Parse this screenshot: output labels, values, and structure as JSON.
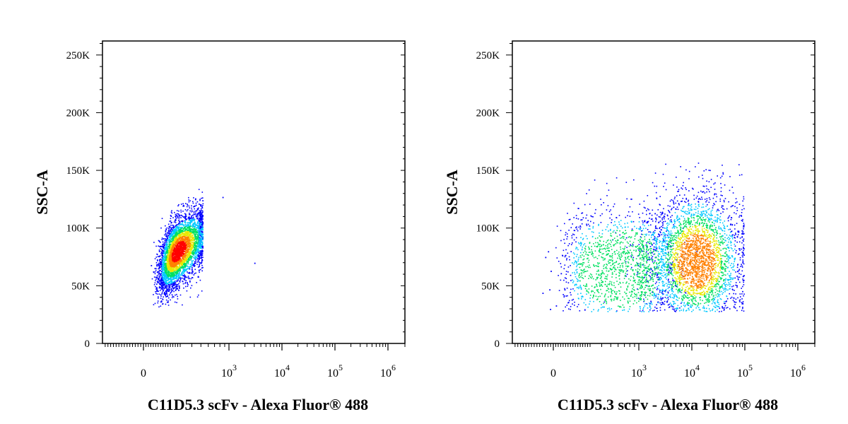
{
  "chart_data": [
    {
      "type": "scatter",
      "subtype": "flow-cytometry-density-dot-plot",
      "xlabel": "C11D5.3 scFv - Alexa Fluor® 488",
      "ylabel": "SSC-A",
      "x_scale": "biexponential",
      "y_scale": "linear",
      "ylim": [
        0,
        262144
      ],
      "y_ticks": [
        {
          "value": 0,
          "label": "0"
        },
        {
          "value": 50000,
          "label": "50K"
        },
        {
          "value": 100000,
          "label": "100K"
        },
        {
          "value": 150000,
          "label": "150K"
        },
        {
          "value": 200000,
          "label": "200K"
        },
        {
          "value": 250000,
          "label": "250K"
        }
      ],
      "x_ticks": [
        {
          "value": 0,
          "base": "0",
          "exp": ""
        },
        {
          "value": 1000,
          "base": "10",
          "exp": "3"
        },
        {
          "value": 10000,
          "base": "10",
          "exp": "4"
        },
        {
          "value": 100000,
          "base": "10",
          "exp": "5"
        },
        {
          "value": 1000000,
          "base": "10",
          "exp": "6"
        }
      ],
      "color_scale": [
        "#0000ff",
        "#00c8ff",
        "#00e060",
        "#e8e800",
        "#ff8000",
        "#ff0000"
      ],
      "populations": [
        {
          "x_center": 280,
          "x_spread": 0.17,
          "y_center": 80000,
          "y_spread": 17000,
          "y_min": 32000,
          "y_max": 145000,
          "x_max": 520,
          "count": 4200,
          "peak_color": "#ff0000",
          "correlation": 0.55
        }
      ],
      "outliers": [
        {
          "x": 3000,
          "y": 70000
        },
        {
          "x": 850,
          "y": 127000
        },
        {
          "x": 60,
          "y": 68000
        }
      ],
      "grid": false,
      "legend": "none"
    },
    {
      "type": "scatter",
      "subtype": "flow-cytometry-density-dot-plot",
      "xlabel": "C11D5.3 scFv - Alexa Fluor® 488",
      "ylabel": "SSC-A",
      "x_scale": "biexponential",
      "y_scale": "linear",
      "ylim": [
        0,
        262144
      ],
      "y_ticks": [
        {
          "value": 0,
          "label": "0"
        },
        {
          "value": 50000,
          "label": "50K"
        },
        {
          "value": 100000,
          "label": "100K"
        },
        {
          "value": 150000,
          "label": "150K"
        },
        {
          "value": 200000,
          "label": "200K"
        },
        {
          "value": 250000,
          "label": "250K"
        }
      ],
      "x_ticks": [
        {
          "value": 0,
          "base": "0",
          "exp": ""
        },
        {
          "value": 1000,
          "base": "10",
          "exp": "3"
        },
        {
          "value": 10000,
          "base": "10",
          "exp": "4"
        },
        {
          "value": 100000,
          "base": "10",
          "exp": "5"
        },
        {
          "value": 1000000,
          "base": "10",
          "exp": "6"
        }
      ],
      "color_scale": [
        "#0000ff",
        "#00c8ff",
        "#00e060",
        "#e8e800",
        "#ff8000",
        "#ff0000"
      ],
      "populations": [
        {
          "x_center": 12000,
          "x_spread": 0.45,
          "y_center": 72000,
          "y_spread": 30000,
          "y_min": 28000,
          "y_max": 158000,
          "x_max": 95000,
          "count": 3200,
          "peak_color": "#ffb000",
          "correlation": 0.0
        },
        {
          "x_center": 700,
          "x_spread": 0.42,
          "y_center": 65000,
          "y_spread": 26000,
          "y_min": 28000,
          "y_max": 155000,
          "x_max": 95000,
          "count": 1600,
          "peak_color": "#00e060",
          "correlation": 0.0
        }
      ],
      "outliers": [
        {
          "x": -60,
          "y": 75000
        },
        {
          "x": -40,
          "y": 80000
        },
        {
          "x": -20,
          "y": 63000
        },
        {
          "x": -80,
          "y": 44000
        },
        {
          "x": -25,
          "y": 30000
        },
        {
          "x": -30,
          "y": 47000
        },
        {
          "x": 60,
          "y": 61000
        },
        {
          "x": 90,
          "y": 47000
        },
        {
          "x": 120,
          "y": 36000
        },
        {
          "x": 20,
          "y": 33000
        }
      ],
      "grid": false,
      "legend": "none"
    }
  ]
}
